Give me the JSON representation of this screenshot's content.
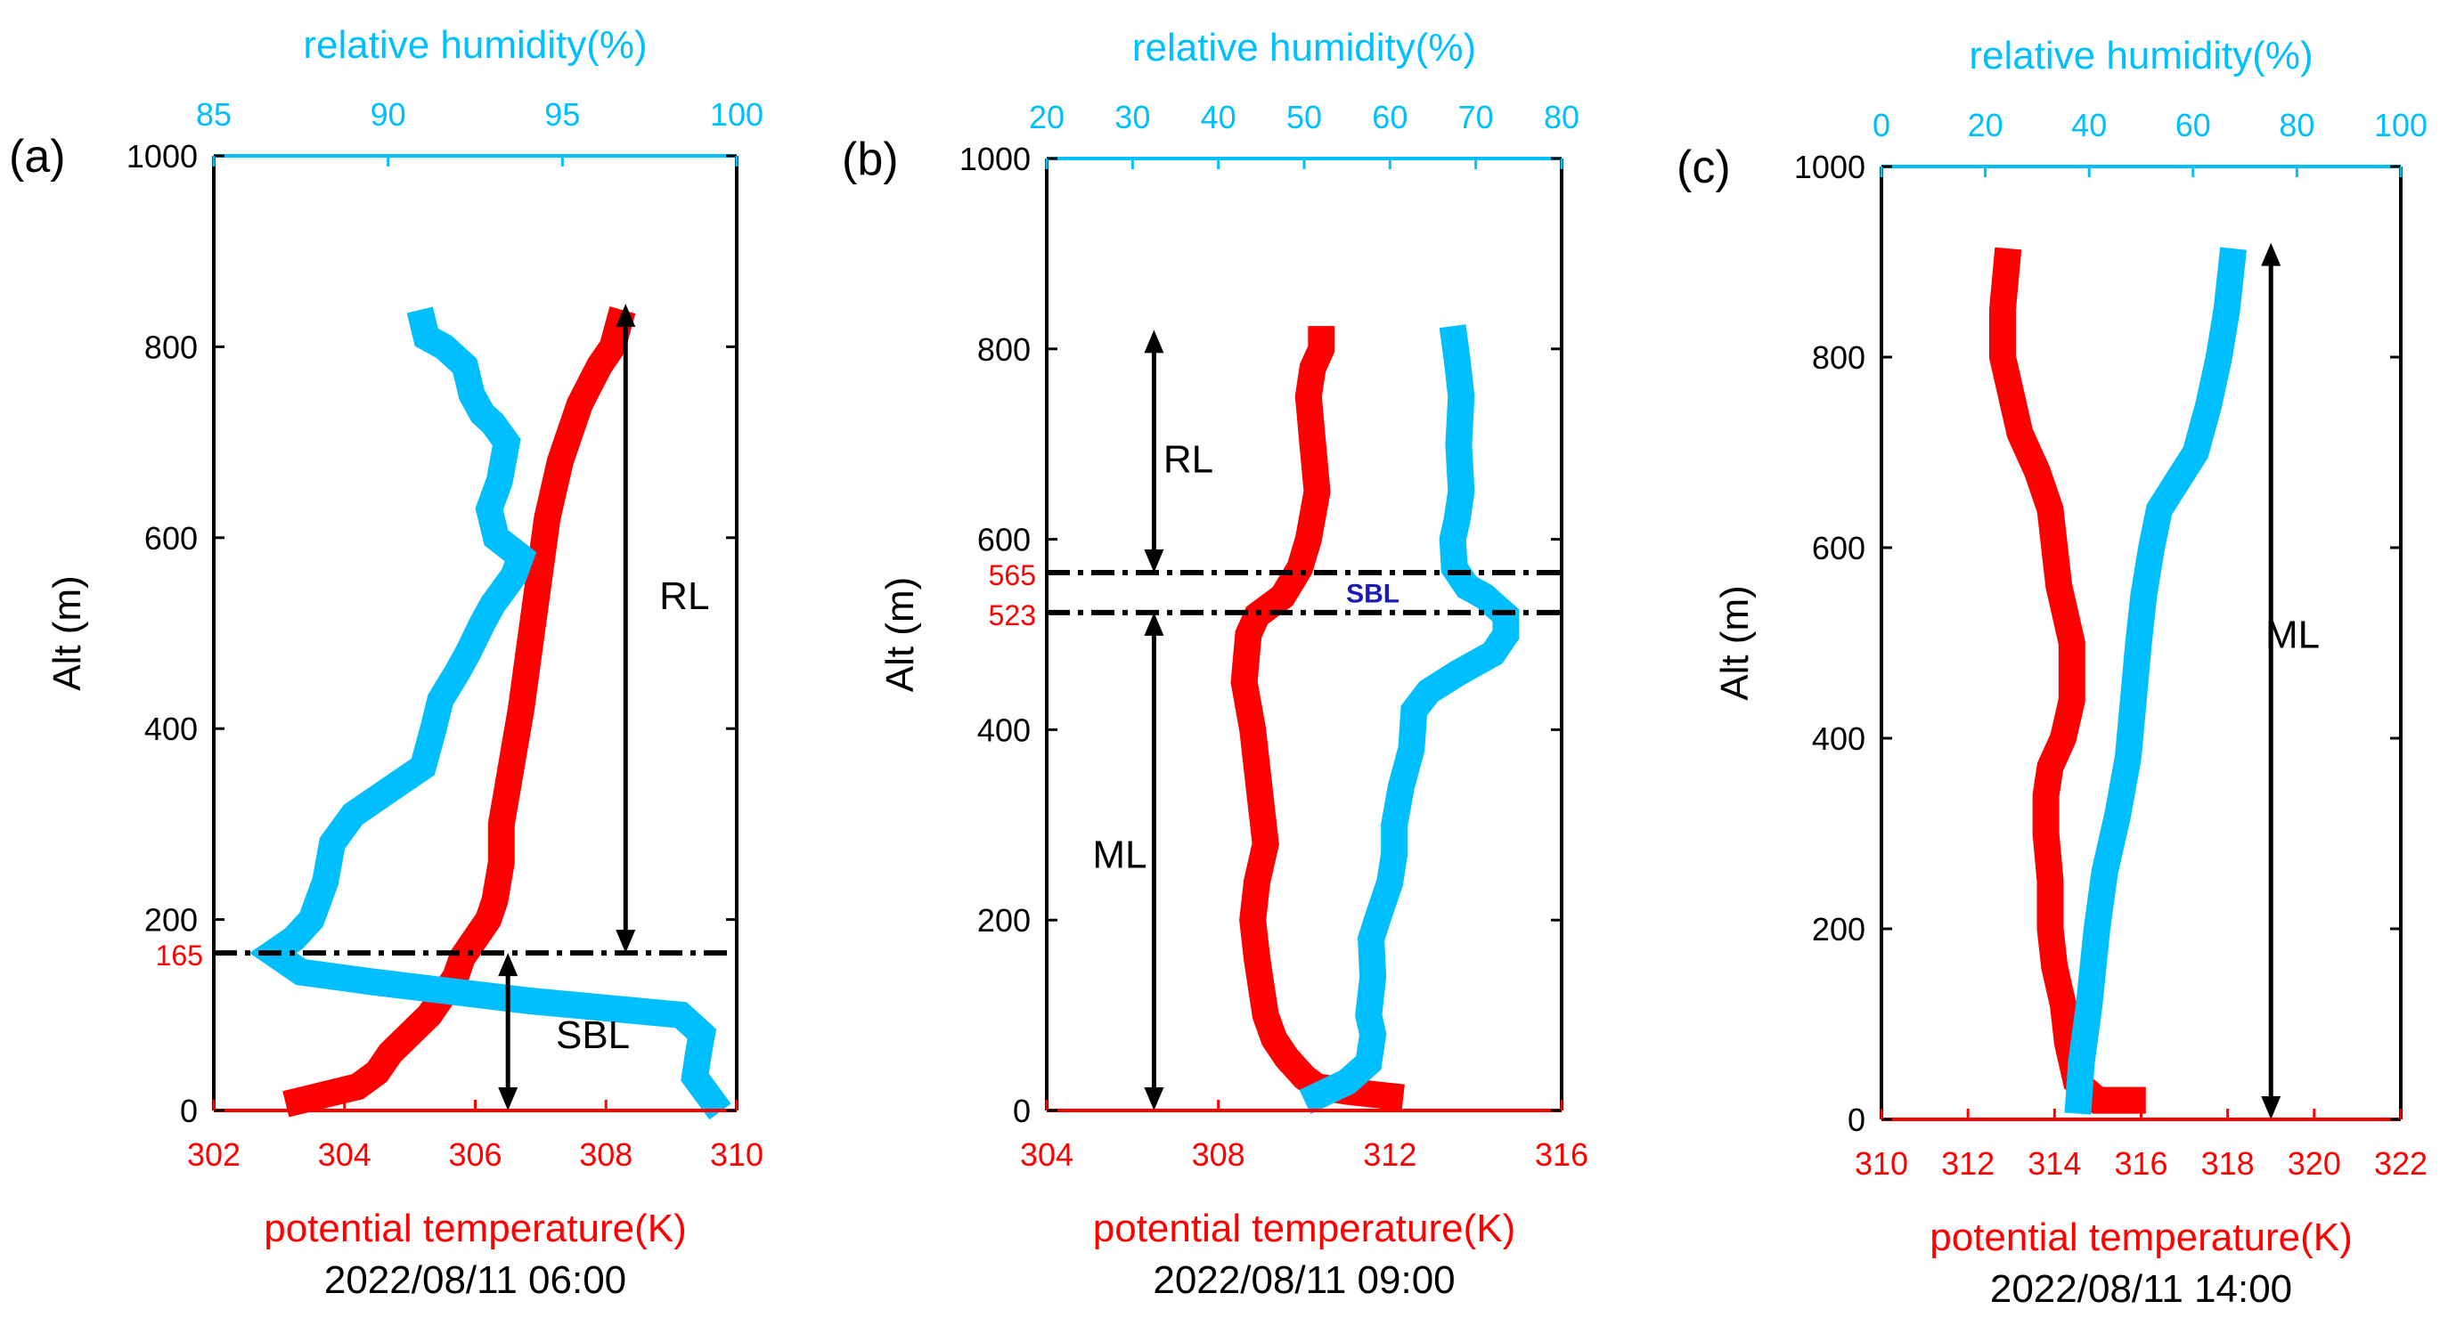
{
  "colors": {
    "theta": "#ff0000",
    "rh": "#00bfff",
    "black": "#000000",
    "sbl_label": "#1a1ab8"
  },
  "chart_data": [
    {
      "type": "line",
      "panel_label": "(a)",
      "date": "2022/08/11 06:00",
      "xlabel": "potential temperature(K)",
      "x2label": "relative humidity(%)",
      "ylabel": "Alt (m)",
      "xlim": [
        302,
        310
      ],
      "x2lim": [
        85,
        100
      ],
      "ylim": [
        0,
        1000
      ],
      "xticks": [
        "302",
        "304",
        "306",
        "308",
        "310"
      ],
      "x2ticks": [
        "85",
        "90",
        "95",
        "100"
      ],
      "yticks": [
        "0",
        "200",
        "400",
        "600",
        "800",
        "1000"
      ],
      "series": [
        {
          "name": "potential temperature",
          "axis": "bottom",
          "color": "#ff0000",
          "points": [
            [
              303.3,
              10
            ],
            [
              303.6,
              15
            ],
            [
              304.2,
              25
            ],
            [
              304.5,
              40
            ],
            [
              304.7,
              60
            ],
            [
              305.0,
              80
            ],
            [
              305.3,
              100
            ],
            [
              305.5,
              120
            ],
            [
              305.7,
              140
            ],
            [
              305.8,
              160
            ],
            [
              306.0,
              180
            ],
            [
              306.2,
              200
            ],
            [
              306.3,
              220
            ],
            [
              306.4,
              260
            ],
            [
              306.4,
              300
            ],
            [
              306.5,
              340
            ],
            [
              306.6,
              380
            ],
            [
              306.7,
              420
            ],
            [
              306.8,
              470
            ],
            [
              306.9,
              520
            ],
            [
              307.0,
              570
            ],
            [
              307.1,
              620
            ],
            [
              307.3,
              680
            ],
            [
              307.6,
              740
            ],
            [
              307.9,
              780
            ],
            [
              308.1,
              800
            ],
            [
              308.2,
              825
            ]
          ]
        },
        {
          "name": "relative humidity",
          "axis": "top",
          "color": "#00bfff",
          "points": [
            [
              99.3,
              10
            ],
            [
              98.8,
              35
            ],
            [
              98.9,
              60
            ],
            [
              99.0,
              80
            ],
            [
              98.4,
              100
            ],
            [
              94.0,
              115
            ],
            [
              89.5,
              135
            ],
            [
              87.5,
              145
            ],
            [
              86.7,
              165
            ],
            [
              87.3,
              180
            ],
            [
              87.8,
              200
            ],
            [
              88.2,
              240
            ],
            [
              88.4,
              280
            ],
            [
              89.0,
              310
            ],
            [
              90.2,
              340
            ],
            [
              91.0,
              360
            ],
            [
              91.3,
              400
            ],
            [
              91.5,
              430
            ],
            [
              92.0,
              460
            ],
            [
              92.3,
              480
            ],
            [
              92.7,
              510
            ],
            [
              93.0,
              530
            ],
            [
              93.6,
              560
            ],
            [
              93.8,
              580
            ],
            [
              93.1,
              600
            ],
            [
              92.9,
              630
            ],
            [
              93.2,
              660
            ],
            [
              93.4,
              700
            ],
            [
              93.0,
              720
            ],
            [
              92.7,
              730
            ],
            [
              92.4,
              750
            ],
            [
              92.2,
              780
            ],
            [
              91.6,
              800
            ],
            [
              91.1,
              810
            ],
            [
              91.0,
              825
            ]
          ]
        }
      ],
      "hlines": [
        {
          "alt": 165,
          "label": "165"
        }
      ],
      "arrows": [
        {
          "label": "RL",
          "theta_x": 308.3,
          "from": 165,
          "to": 845,
          "label_alt": 540,
          "label_theta": 309.2
        },
        {
          "label": "SBL",
          "theta_x": 306.5,
          "from": 0,
          "to": 165,
          "label_alt": 80,
          "label_theta": 307.8
        }
      ]
    },
    {
      "type": "line",
      "panel_label": "(b)",
      "date": "2022/08/11 09:00",
      "xlabel": "potential temperature(K)",
      "x2label": "relative humidity(%)",
      "ylabel": "Alt (m)",
      "xlim": [
        304,
        316
      ],
      "x2lim": [
        20,
        80
      ],
      "ylim": [
        0,
        1000
      ],
      "xticks": [
        "304",
        "308",
        "312",
        "316"
      ],
      "x2ticks": [
        "20",
        "30",
        "40",
        "50",
        "60",
        "70",
        "80"
      ],
      "yticks": [
        "0",
        "200",
        "400",
        "600",
        "800",
        "1000"
      ],
      "series": [
        {
          "name": "potential temperature",
          "axis": "bottom",
          "color": "#ff0000",
          "points": [
            [
              312.0,
              15
            ],
            [
              311.0,
              20
            ],
            [
              310.3,
              25
            ],
            [
              310.0,
              35
            ],
            [
              309.6,
              55
            ],
            [
              309.3,
              75
            ],
            [
              309.1,
              100
            ],
            [
              309.0,
              130
            ],
            [
              308.9,
              160
            ],
            [
              308.8,
              200
            ],
            [
              308.9,
              240
            ],
            [
              309.1,
              280
            ],
            [
              309.0,
              320
            ],
            [
              308.9,
              360
            ],
            [
              308.8,
              400
            ],
            [
              308.6,
              450
            ],
            [
              308.7,
              500
            ],
            [
              308.9,
              520
            ],
            [
              309.5,
              540
            ],
            [
              309.9,
              570
            ],
            [
              310.1,
              600
            ],
            [
              310.3,
              650
            ],
            [
              310.2,
              700
            ],
            [
              310.1,
              750
            ],
            [
              310.2,
              780
            ],
            [
              310.4,
              800
            ],
            [
              310.4,
              810
            ]
          ]
        },
        {
          "name": "relative humidity",
          "axis": "top",
          "color": "#00bfff",
          "points": [
            [
              51.5,
              15
            ],
            [
              55.0,
              30
            ],
            [
              57.5,
              50
            ],
            [
              58.0,
              80
            ],
            [
              57.5,
              100
            ],
            [
              58.0,
              140
            ],
            [
              57.8,
              180
            ],
            [
              58.5,
              200
            ],
            [
              60.0,
              240
            ],
            [
              60.5,
              270
            ],
            [
              60.5,
              300
            ],
            [
              61.3,
              340
            ],
            [
              62.5,
              380
            ],
            [
              62.8,
              420
            ],
            [
              64.5,
              440
            ],
            [
              68.0,
              460
            ],
            [
              72.0,
              480
            ],
            [
              73.5,
              500
            ],
            [
              73.5,
              520
            ],
            [
              71.0,
              540
            ],
            [
              69.0,
              550
            ],
            [
              67.5,
              570
            ],
            [
              67.3,
              600
            ],
            [
              67.8,
              620
            ],
            [
              68.3,
              650
            ],
            [
              68.0,
              700
            ],
            [
              68.3,
              750
            ],
            [
              67.8,
              790
            ],
            [
              67.5,
              810
            ]
          ]
        }
      ],
      "hlines": [
        {
          "alt": 565,
          "label": "565"
        },
        {
          "alt": 523,
          "label": "523"
        }
      ],
      "arrows": [
        {
          "label": "RL",
          "theta_x": 306.5,
          "from": 565,
          "to": 820,
          "label_alt": 685,
          "label_theta": 307.3
        },
        {
          "label": "ML",
          "theta_x": 306.5,
          "from": 0,
          "to": 523,
          "label_alt": 270,
          "label_theta": 305.7
        }
      ],
      "zone_label": {
        "label": "SBL",
        "alt": 544,
        "theta": 311.6
      }
    },
    {
      "type": "line",
      "panel_label": "(c)",
      "date": "2022/08/11 14:00",
      "xlabel": "potential temperature(K)",
      "x2label": "relative humidity(%)",
      "ylabel": "Alt (m)",
      "xlim": [
        310,
        322
      ],
      "x2lim": [
        0,
        100
      ],
      "ylim": [
        0,
        1000
      ],
      "xticks": [
        "310",
        "312",
        "314",
        "316",
        "318",
        "320",
        "322"
      ],
      "x2ticks": [
        "0",
        "20",
        "40",
        "60",
        "80",
        "100"
      ],
      "yticks": [
        "0",
        "200",
        "400",
        "600",
        "800",
        "1000"
      ],
      "series": [
        {
          "name": "potential temperature",
          "axis": "bottom",
          "color": "#ff0000",
          "points": [
            [
              315.8,
              20
            ],
            [
              315.0,
              20
            ],
            [
              314.5,
              40
            ],
            [
              314.3,
              80
            ],
            [
              314.2,
              120
            ],
            [
              314.0,
              160
            ],
            [
              313.9,
              200
            ],
            [
              313.9,
              250
            ],
            [
              313.8,
              300
            ],
            [
              313.8,
              340
            ],
            [
              313.9,
              370
            ],
            [
              314.2,
              400
            ],
            [
              314.4,
              440
            ],
            [
              314.4,
              500
            ],
            [
              314.1,
              560
            ],
            [
              314.0,
              600
            ],
            [
              313.9,
              640
            ],
            [
              313.6,
              680
            ],
            [
              313.2,
              720
            ],
            [
              313.0,
              760
            ],
            [
              312.8,
              800
            ],
            [
              312.8,
              850
            ],
            [
              312.9,
              900
            ]
          ]
        },
        {
          "name": "relative humidity",
          "axis": "top",
          "color": "#00bfff",
          "points": [
            [
              38.0,
              20
            ],
            [
              38.5,
              60
            ],
            [
              40.0,
              120
            ],
            [
              41.5,
              200
            ],
            [
              43.0,
              260
            ],
            [
              45.5,
              320
            ],
            [
              47.5,
              380
            ],
            [
              48.5,
              440
            ],
            [
              49.5,
              500
            ],
            [
              50.5,
              550
            ],
            [
              52.0,
              600
            ],
            [
              53.5,
              640
            ],
            [
              57.0,
              670
            ],
            [
              60.5,
              700
            ],
            [
              63.0,
              750
            ],
            [
              65.0,
              800
            ],
            [
              66.5,
              850
            ],
            [
              67.5,
              900
            ]
          ]
        }
      ],
      "hlines": [],
      "arrows": [
        {
          "label": "ML",
          "theta_x": 319.0,
          "from": 0,
          "to": 920,
          "label_alt": 510,
          "label_theta": 319.5
        }
      ]
    }
  ]
}
